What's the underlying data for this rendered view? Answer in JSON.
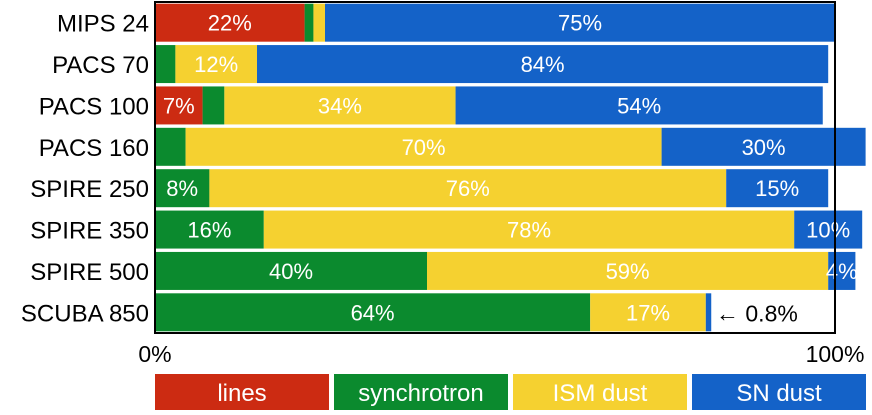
{
  "chart_data": {
    "type": "bar",
    "stacked": true,
    "orientation": "horizontal",
    "categories": [
      "MIPS 24",
      "PACS 70",
      "PACS 100",
      "PACS 160",
      "SPIRE 250",
      "SPIRE 350",
      "SPIRE 500",
      "SCUBA 850"
    ],
    "series": [
      {
        "name": "lines",
        "color": "#cc2b12",
        "values": [
          22,
          0,
          7,
          0,
          0,
          0,
          0,
          0
        ],
        "labels": [
          "22%",
          "",
          "7%",
          "",
          "",
          "",
          "",
          ""
        ]
      },
      {
        "name": "synchrotron",
        "color": "#0b8a2e",
        "values": [
          1.3,
          3,
          3.2,
          4.5,
          8,
          16,
          40,
          64
        ],
        "labels": [
          "",
          "",
          "",
          "",
          "8%",
          "16%",
          "40%",
          "64%"
        ]
      },
      {
        "name": "ISM dust",
        "color": "#f5d130",
        "values": [
          1.7,
          12,
          34,
          70,
          76,
          78,
          59,
          17
        ],
        "labels": [
          "",
          "12%",
          "34%",
          "70%",
          "76%",
          "78%",
          "59%",
          "17%"
        ]
      },
      {
        "name": "SN dust",
        "color": "#1462c8",
        "values": [
          75,
          84,
          54,
          30,
          15,
          10,
          4,
          0.8
        ],
        "labels": [
          "75%",
          "84%",
          "54%",
          "30%",
          "15%",
          "10%",
          "4%",
          ""
        ]
      }
    ],
    "annotation": "← 0.8%",
    "xlim": [
      0,
      100
    ],
    "x_tick_labels": [
      "0%",
      "100%"
    ],
    "grid": false,
    "legend_placement": "bottom"
  }
}
